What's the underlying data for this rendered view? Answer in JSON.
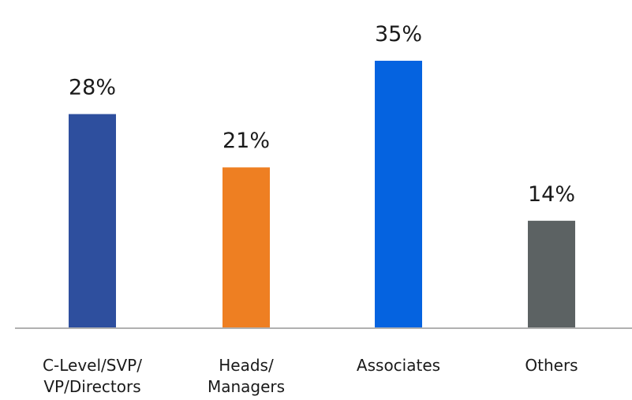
{
  "chart_data": {
    "type": "bar",
    "categories": [
      "C-Level/SVP/\nVP/Directors",
      "Heads/\nManagers",
      "Associates",
      "Others"
    ],
    "values": [
      28,
      21,
      35,
      14
    ],
    "value_labels": [
      "28%",
      "21%",
      "35%",
      "14%"
    ],
    "colors": [
      "#2e4f9e",
      "#ee7f22",
      "#0563e0",
      "#5c6263"
    ],
    "axis_color": "#b0b0b0",
    "title": "",
    "xlabel": "",
    "ylabel": "",
    "ylim": [
      0,
      35
    ],
    "grid": false,
    "legend": "none"
  }
}
